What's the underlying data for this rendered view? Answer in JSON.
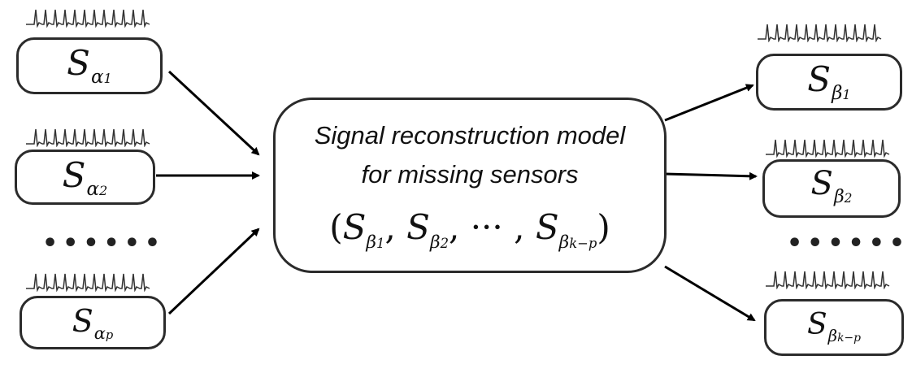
{
  "inputs": [
    {
      "base": "S",
      "sub": "α",
      "subsub": "1"
    },
    {
      "base": "S",
      "sub": "α",
      "subsub": "2"
    },
    {
      "base": "S",
      "sub": "α",
      "subsub": "p"
    }
  ],
  "outputs": [
    {
      "base": "S",
      "sub": "β",
      "subsub": "1"
    },
    {
      "base": "S",
      "sub": "β",
      "subsub": "2"
    },
    {
      "base": "S",
      "sub": "β",
      "subsub": "k−p"
    }
  ],
  "model": {
    "line1": "Signal reconstruction model",
    "line2": "for missing sensors",
    "formula": {
      "open": "(",
      "t1_base": "S",
      "t1_sub": "β",
      "t1_subsub": "1",
      "sep1": ", ",
      "t2_base": "S",
      "t2_sub": "β",
      "t2_subsub": "2",
      "sep2": ", ··· , ",
      "t3_base": "S",
      "t3_sub": "β",
      "t3_subsub": "k−p",
      "close": ")"
    }
  },
  "ellipsis": {
    "left": "••••••",
    "right": "••••••"
  }
}
